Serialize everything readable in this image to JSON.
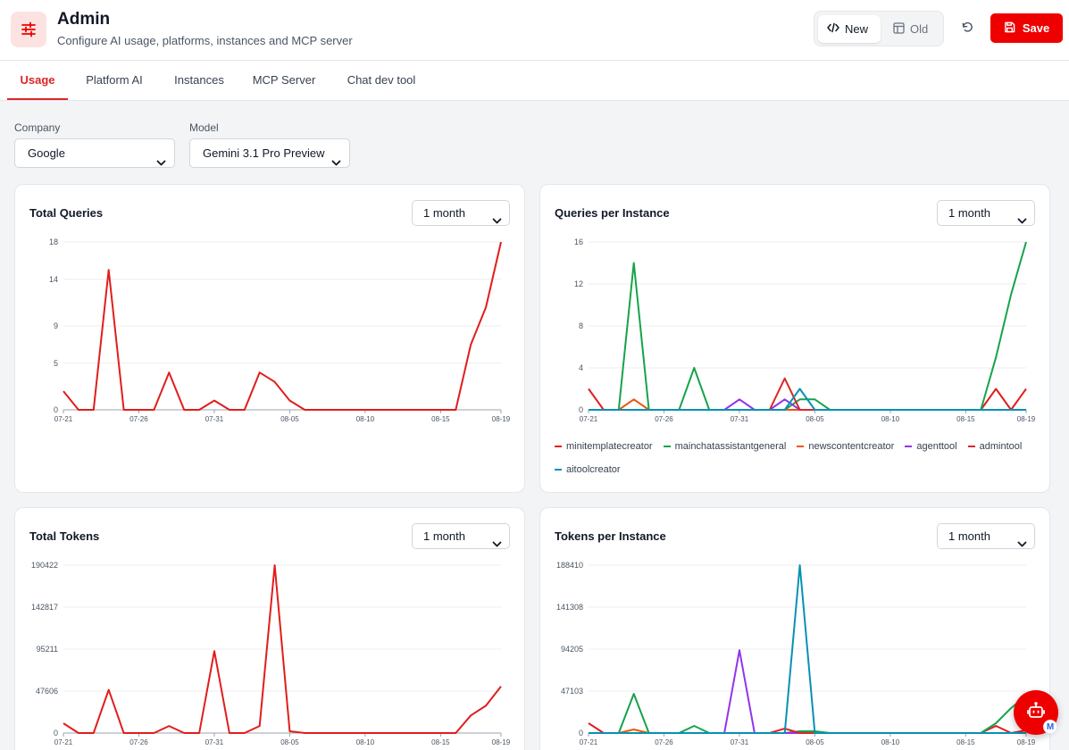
{
  "header": {
    "title": "Admin",
    "subtitle": "Configure AI usage, platforms, instances and MCP server",
    "logo_icon": "sliders-icon",
    "toggle": {
      "new_label": "New",
      "old_label": "Old",
      "active": "New"
    },
    "save_label": "Save"
  },
  "tabs": [
    {
      "label": "Usage",
      "active": true
    },
    {
      "label": "Platform AI",
      "active": false
    },
    {
      "label": "Instances",
      "active": false
    },
    {
      "label": "MCP Server",
      "active": false
    },
    {
      "label": "Chat dev tool",
      "active": false
    }
  ],
  "filters": {
    "company": {
      "label": "Company",
      "value": "Google"
    },
    "model": {
      "label": "Model",
      "value": "Gemini 3.1 Pro Preview"
    }
  },
  "colors": {
    "accent": "#ef0000",
    "series": {
      "minitemplatecreator": "#e11d1d",
      "mainchatassistantgeneral": "#16a34a",
      "newscontentcreator": "#ea580c",
      "agenttool": "#9333ea",
      "admintool": "#dc2626",
      "aitoolcreator": "#0891b2"
    }
  },
  "cards": {
    "total_queries": {
      "title": "Total Queries",
      "range": "1 month"
    },
    "queries_per_instance": {
      "title": "Queries per Instance",
      "range": "1 month"
    },
    "total_tokens": {
      "title": "Total Tokens",
      "range": "1 month"
    },
    "tokens_per_instance": {
      "title": "Tokens per Instance",
      "range": "1 month"
    }
  },
  "chart_data": [
    {
      "id": "total_queries",
      "type": "line",
      "title": "Total Queries",
      "x": [
        "07-21",
        "07-22",
        "07-23",
        "07-24",
        "07-25",
        "07-26",
        "07-27",
        "07-28",
        "07-29",
        "07-30",
        "07-31",
        "08-01",
        "08-02",
        "08-03",
        "08-04",
        "08-05",
        "08-06",
        "08-07",
        "08-08",
        "08-09",
        "08-10",
        "08-11",
        "08-12",
        "08-13",
        "08-14",
        "08-15",
        "08-16",
        "08-17",
        "08-18",
        "08-19"
      ],
      "x_ticks": [
        "07-21",
        "07-26",
        "07-31",
        "08-05",
        "08-10",
        "08-15",
        "08-19"
      ],
      "y_ticks": [
        0,
        5,
        9,
        14,
        18
      ],
      "ylim": [
        0,
        18
      ],
      "grid": true,
      "series": [
        {
          "values": [
            2,
            0,
            0,
            15,
            0,
            0,
            0,
            4,
            0,
            0,
            1,
            0,
            0,
            4,
            3,
            1,
            0,
            0,
            0,
            0,
            0,
            0,
            0,
            0,
            0,
            0,
            0,
            7,
            11,
            18
          ],
          "color": "#e11d1d"
        }
      ]
    },
    {
      "id": "queries_per_instance",
      "type": "line",
      "title": "Queries per Instance",
      "x": [
        "07-21",
        "07-22",
        "07-23",
        "07-24",
        "07-25",
        "07-26",
        "07-27",
        "07-28",
        "07-29",
        "07-30",
        "07-31",
        "08-01",
        "08-02",
        "08-03",
        "08-04",
        "08-05",
        "08-06",
        "08-07",
        "08-08",
        "08-09",
        "08-10",
        "08-11",
        "08-12",
        "08-13",
        "08-14",
        "08-15",
        "08-16",
        "08-17",
        "08-18",
        "08-19"
      ],
      "x_ticks": [
        "07-21",
        "07-26",
        "07-31",
        "08-05",
        "08-10",
        "08-15",
        "08-19"
      ],
      "y_ticks": [
        0,
        4,
        8,
        12,
        16
      ],
      "ylim": [
        0,
        16
      ],
      "grid": true,
      "legend_position": "bottom",
      "series": [
        {
          "name": "minitemplatecreator",
          "color": "#e11d1d",
          "values": [
            2,
            0,
            0,
            0,
            0,
            0,
            0,
            0,
            0,
            0,
            0,
            0,
            0,
            0,
            0,
            0,
            0,
            0,
            0,
            0,
            0,
            0,
            0,
            0,
            0,
            0,
            0,
            2,
            0,
            2
          ]
        },
        {
          "name": "mainchatassistantgeneral",
          "color": "#16a34a",
          "values": [
            0,
            0,
            0,
            14,
            0,
            0,
            0,
            4,
            0,
            0,
            0,
            0,
            0,
            0,
            1,
            1,
            0,
            0,
            0,
            0,
            0,
            0,
            0,
            0,
            0,
            0,
            0,
            5,
            11,
            16
          ]
        },
        {
          "name": "newscontentcreator",
          "color": "#ea580c",
          "values": [
            0,
            0,
            0,
            1,
            0,
            0,
            0,
            0,
            0,
            0,
            0,
            0,
            0,
            0,
            0,
            0,
            0,
            0,
            0,
            0,
            0,
            0,
            0,
            0,
            0,
            0,
            0,
            0,
            0,
            0
          ]
        },
        {
          "name": "agenttool",
          "color": "#9333ea",
          "values": [
            0,
            0,
            0,
            0,
            0,
            0,
            0,
            0,
            0,
            0,
            1,
            0,
            0,
            1,
            0,
            0,
            0,
            0,
            0,
            0,
            0,
            0,
            0,
            0,
            0,
            0,
            0,
            0,
            0,
            0
          ]
        },
        {
          "name": "admintool",
          "color": "#dc2626",
          "values": [
            0,
            0,
            0,
            0,
            0,
            0,
            0,
            0,
            0,
            0,
            0,
            0,
            0,
            3,
            0,
            0,
            0,
            0,
            0,
            0,
            0,
            0,
            0,
            0,
            0,
            0,
            0,
            0,
            0,
            0
          ]
        },
        {
          "name": "aitoolcreator",
          "color": "#0891b2",
          "values": [
            0,
            0,
            0,
            0,
            0,
            0,
            0,
            0,
            0,
            0,
            0,
            0,
            0,
            0,
            2,
            0,
            0,
            0,
            0,
            0,
            0,
            0,
            0,
            0,
            0,
            0,
            0,
            0,
            0,
            0
          ]
        }
      ]
    },
    {
      "id": "total_tokens",
      "type": "line",
      "title": "Total Tokens",
      "x": [
        "07-21",
        "07-22",
        "07-23",
        "07-24",
        "07-25",
        "07-26",
        "07-27",
        "07-28",
        "07-29",
        "07-30",
        "07-31",
        "08-01",
        "08-02",
        "08-03",
        "08-04",
        "08-05",
        "08-06",
        "08-07",
        "08-08",
        "08-09",
        "08-10",
        "08-11",
        "08-12",
        "08-13",
        "08-14",
        "08-15",
        "08-16",
        "08-17",
        "08-18",
        "08-19"
      ],
      "x_ticks": [
        "07-21",
        "07-26",
        "07-31",
        "08-05",
        "08-10",
        "08-15",
        "08-19"
      ],
      "y_ticks": [
        0,
        47606,
        95211,
        142817,
        190422
      ],
      "ylim": [
        0,
        190422
      ],
      "grid": true,
      "series": [
        {
          "values": [
            11000,
            0,
            0,
            49000,
            0,
            0,
            0,
            8000,
            0,
            0,
            93000,
            0,
            0,
            8000,
            190422,
            2000,
            0,
            0,
            0,
            0,
            0,
            0,
            0,
            0,
            0,
            0,
            0,
            20000,
            31000,
            53000
          ],
          "color": "#e11d1d"
        }
      ]
    },
    {
      "id": "tokens_per_instance",
      "type": "line",
      "title": "Tokens per Instance",
      "x": [
        "07-21",
        "07-22",
        "07-23",
        "07-24",
        "07-25",
        "07-26",
        "07-27",
        "07-28",
        "07-29",
        "07-30",
        "07-31",
        "08-01",
        "08-02",
        "08-03",
        "08-04",
        "08-05",
        "08-06",
        "08-07",
        "08-08",
        "08-09",
        "08-10",
        "08-11",
        "08-12",
        "08-13",
        "08-14",
        "08-15",
        "08-16",
        "08-17",
        "08-18",
        "08-19"
      ],
      "x_ticks": [
        "07-21",
        "07-26",
        "07-31",
        "08-05",
        "08-10",
        "08-15",
        "08-19"
      ],
      "y_ticks": [
        0,
        47103,
        94205,
        141308,
        188410
      ],
      "ylim": [
        0,
        188410
      ],
      "grid": true,
      "series": [
        {
          "name": "minitemplatecreator",
          "color": "#e11d1d",
          "values": [
            11000,
            0,
            0,
            0,
            0,
            0,
            0,
            0,
            0,
            0,
            0,
            0,
            0,
            0,
            0,
            0,
            0,
            0,
            0,
            0,
            0,
            0,
            0,
            0,
            0,
            0,
            0,
            8000,
            0,
            3000
          ]
        },
        {
          "name": "mainchatassistantgeneral",
          "color": "#16a34a",
          "values": [
            0,
            0,
            0,
            44000,
            0,
            0,
            0,
            8000,
            0,
            0,
            0,
            0,
            0,
            0,
            2000,
            2000,
            0,
            0,
            0,
            0,
            0,
            0,
            0,
            0,
            0,
            0,
            0,
            11000,
            28000,
            42000
          ]
        },
        {
          "name": "newscontentcreator",
          "color": "#ea580c",
          "values": [
            0,
            0,
            0,
            4000,
            0,
            0,
            0,
            0,
            0,
            0,
            0,
            0,
            0,
            0,
            0,
            0,
            0,
            0,
            0,
            0,
            0,
            0,
            0,
            0,
            0,
            0,
            0,
            0,
            0,
            0
          ]
        },
        {
          "name": "agenttool",
          "color": "#9333ea",
          "values": [
            0,
            0,
            0,
            0,
            0,
            0,
            0,
            0,
            0,
            0,
            93000,
            0,
            0,
            0,
            0,
            0,
            0,
            0,
            0,
            0,
            0,
            0,
            0,
            0,
            0,
            0,
            0,
            0,
            0,
            0
          ]
        },
        {
          "name": "admintool",
          "color": "#dc2626",
          "values": [
            0,
            0,
            0,
            0,
            0,
            0,
            0,
            0,
            0,
            0,
            0,
            0,
            0,
            5000,
            0,
            0,
            0,
            0,
            0,
            0,
            0,
            0,
            0,
            0,
            0,
            0,
            0,
            0,
            0,
            0
          ]
        },
        {
          "name": "aitoolcreator",
          "color": "#0891b2",
          "values": [
            0,
            0,
            0,
            0,
            0,
            0,
            0,
            0,
            0,
            0,
            0,
            0,
            0,
            0,
            188410,
            0,
            0,
            0,
            0,
            0,
            0,
            0,
            0,
            0,
            0,
            0,
            0,
            0,
            0,
            0
          ]
        }
      ]
    }
  ]
}
